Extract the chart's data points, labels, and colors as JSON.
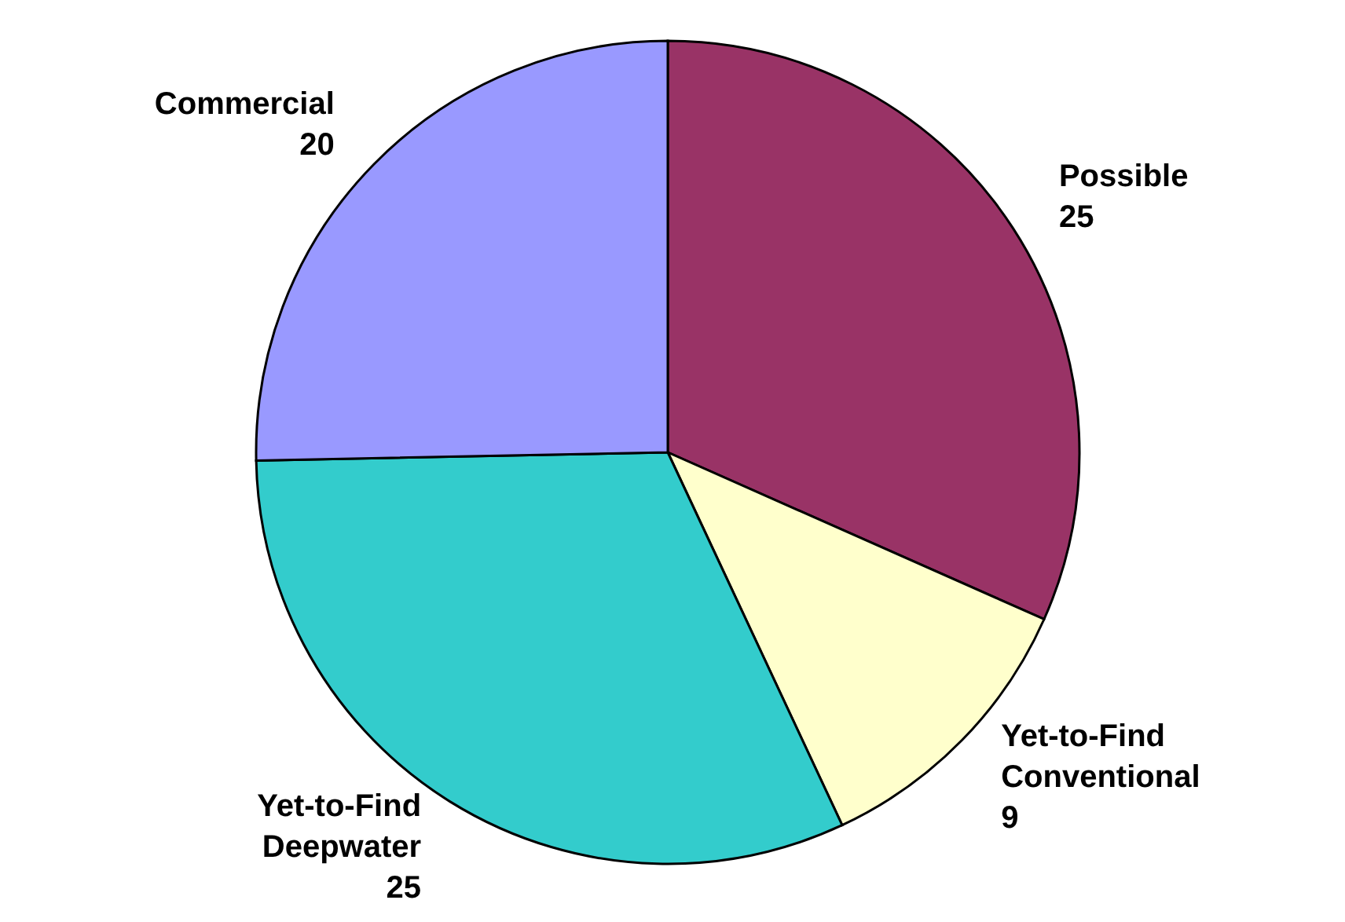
{
  "chart_data": {
    "type": "pie",
    "categories": [
      "Possible",
      "Yet-to-Find Conventional",
      "Yet-to-Find Deepwater",
      "Commercial"
    ],
    "values": [
      25,
      9,
      25,
      20
    ],
    "colors": [
      "#993366",
      "#ffffcc",
      "#33cccc",
      "#9999ff"
    ],
    "data_labels": true
  }
}
